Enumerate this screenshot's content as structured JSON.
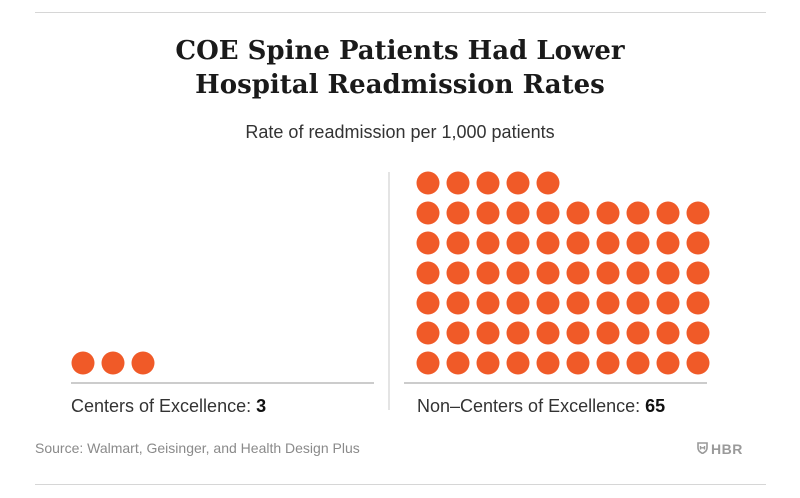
{
  "title_lines": [
    "COE Spine Patients Had Lower",
    "Hospital Readmission Rates"
  ],
  "subtitle": "Rate of readmission per 1,000 patients",
  "chart_data": {
    "type": "pictogram",
    "title": "COE Spine Patients Had Lower Hospital Readmission Rates",
    "subtitle": "Rate of readmission per 1,000 patients",
    "unit": "readmissions per 1,000 patients",
    "categories": [
      "Centers of Excellence",
      "Non–Centers of Excellence"
    ],
    "values": [
      3,
      65
    ],
    "dots_per_row": 10,
    "dot_value": 1
  },
  "labels": {
    "coe": {
      "name": "Centers of Excellence:",
      "value": "3"
    },
    "non_coe": {
      "name": "Non–Centers of Excellence:",
      "value": "65"
    }
  },
  "colors": {
    "dot": "#f05a28",
    "axis": "#9a9a9a",
    "divider": "#c8c8c8"
  },
  "source": "Source: Walmart, Geisinger, and Health Design Plus",
  "brand": {
    "icon": "shield-icon",
    "text": "HBR"
  }
}
